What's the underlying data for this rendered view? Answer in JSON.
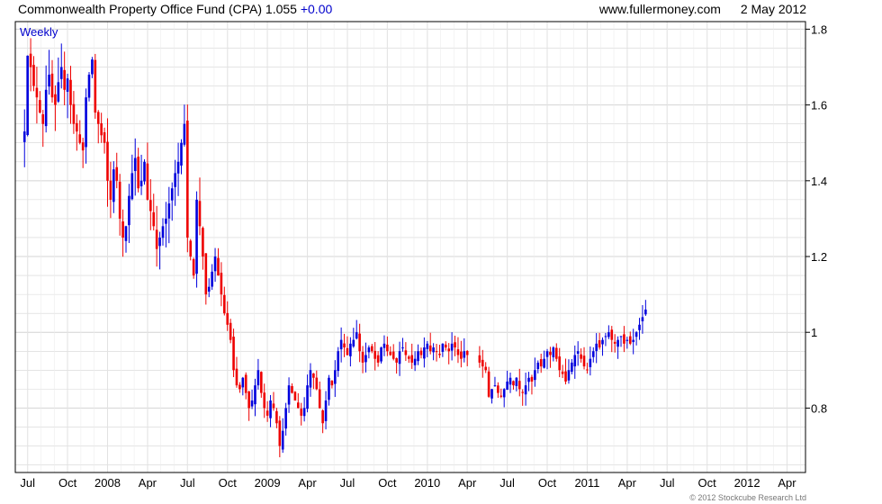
{
  "header": {
    "title": "Commonwealth Property Office Fund (CPA) 1.055",
    "change": "+0.00",
    "site": "www.fullermoney.com",
    "date": "2 May 2012"
  },
  "copyright": "© 2012 Stockcube Research Ltd",
  "colors": {
    "up": "#0000dd",
    "down": "#ee0000",
    "grid": "#d4d4d4",
    "frame": "#000000"
  },
  "chart_data": {
    "type": "ohlc",
    "period_label": "Weekly",
    "ylim": [
      0.63,
      1.82
    ],
    "y_ticks": [
      0.8,
      1.0,
      1.2,
      1.4,
      1.6,
      1.8
    ],
    "y_tick_labels": [
      "0.8",
      "1",
      "1.2",
      "1.4",
      "1.6",
      "1.8"
    ],
    "x_ticks": [
      {
        "label": "Jul",
        "week": 1
      },
      {
        "label": "Oct",
        "week": 14
      },
      {
        "label": "2008",
        "week": 27
      },
      {
        "label": "Apr",
        "week": 40
      },
      {
        "label": "Jul",
        "week": 53
      },
      {
        "label": "Oct",
        "week": 66
      },
      {
        "label": "2009",
        "week": 79
      },
      {
        "label": "Apr",
        "week": 92
      },
      {
        "label": "Jul",
        "week": 105
      },
      {
        "label": "Oct",
        "week": 118
      },
      {
        "label": "2010",
        "week": 131
      },
      {
        "label": "Apr",
        "week": 144
      },
      {
        "label": "Jul",
        "week": 157
      },
      {
        "label": "Oct",
        "week": 170
      },
      {
        "label": "2011",
        "week": 183
      },
      {
        "label": "Apr",
        "week": 196
      },
      {
        "label": "Jul",
        "week": 209
      },
      {
        "label": "Oct",
        "week": 222
      },
      {
        "label": "2012",
        "week": 235
      },
      {
        "label": "Apr",
        "week": 248
      }
    ],
    "x_range_weeks": [
      -3,
      254
    ],
    "weekly_close": [
      1.53,
      1.73,
      1.7,
      1.65,
      1.62,
      1.58,
      1.55,
      1.64,
      1.68,
      1.62,
      1.6,
      1.66,
      1.7,
      1.64,
      1.67,
      1.6,
      1.55,
      1.53,
      1.5,
      1.48,
      1.62,
      1.68,
      1.72,
      1.58,
      1.55,
      1.52,
      1.5,
      1.4,
      1.35,
      1.43,
      1.4,
      1.3,
      1.25,
      1.28,
      1.36,
      1.42,
      1.46,
      1.38,
      1.4,
      1.45,
      1.35,
      1.32,
      1.28,
      1.22,
      1.25,
      1.28,
      1.3,
      1.34,
      1.38,
      1.42,
      1.45,
      1.5,
      1.55,
      1.25,
      1.2,
      1.15,
      1.35,
      1.28,
      1.2,
      1.1,
      1.12,
      1.16,
      1.2,
      1.15,
      1.1,
      1.05,
      1.02,
      0.98,
      0.9,
      0.86,
      0.85,
      0.88,
      0.84,
      0.8,
      0.82,
      0.86,
      0.9,
      0.84,
      0.8,
      0.78,
      0.82,
      0.8,
      0.76,
      0.7,
      0.74,
      0.8,
      0.86,
      0.84,
      0.82,
      0.8,
      0.78,
      0.8,
      0.86,
      0.9,
      0.88,
      0.85,
      0.8,
      0.76,
      0.82,
      0.88,
      0.86,
      0.9,
      0.95,
      0.98,
      0.96,
      0.94,
      0.97,
      0.98,
      1.0,
      0.95,
      0.92,
      0.94,
      0.96,
      0.95,
      0.93,
      0.92,
      0.96,
      0.97,
      0.95,
      0.94,
      0.93,
      0.92,
      0.95,
      0.96,
      0.94,
      0.93,
      0.92,
      0.93,
      0.95,
      0.94,
      0.96,
      0.97,
      0.95,
      0.96,
      0.95,
      0.94,
      0.97,
      0.96,
      0.95,
      0.97,
      0.96,
      0.94,
      0.93,
      0.95,
      0.94,
      0.92,
      0.91,
      0.9,
      0.83,
      0.85,
      0.86,
      0.84,
      0.83,
      0.85,
      0.87,
      0.88,
      0.86,
      0.88,
      0.85,
      0.84,
      0.86,
      0.88,
      0.87,
      0.9,
      0.92,
      0.91,
      0.93,
      0.95,
      0.94,
      0.96,
      0.93,
      0.9,
      0.89,
      0.87,
      0.9,
      0.92,
      0.94,
      0.95,
      0.93,
      0.91,
      0.9,
      0.93,
      0.95,
      0.97,
      0.96,
      0.98,
      0.99,
      1.0,
      0.98,
      0.97,
      0.98,
      0.99,
      0.97,
      0.98,
      0.97,
      0.98,
      1.0,
      1.02,
      1.04,
      1.06
    ]
  }
}
